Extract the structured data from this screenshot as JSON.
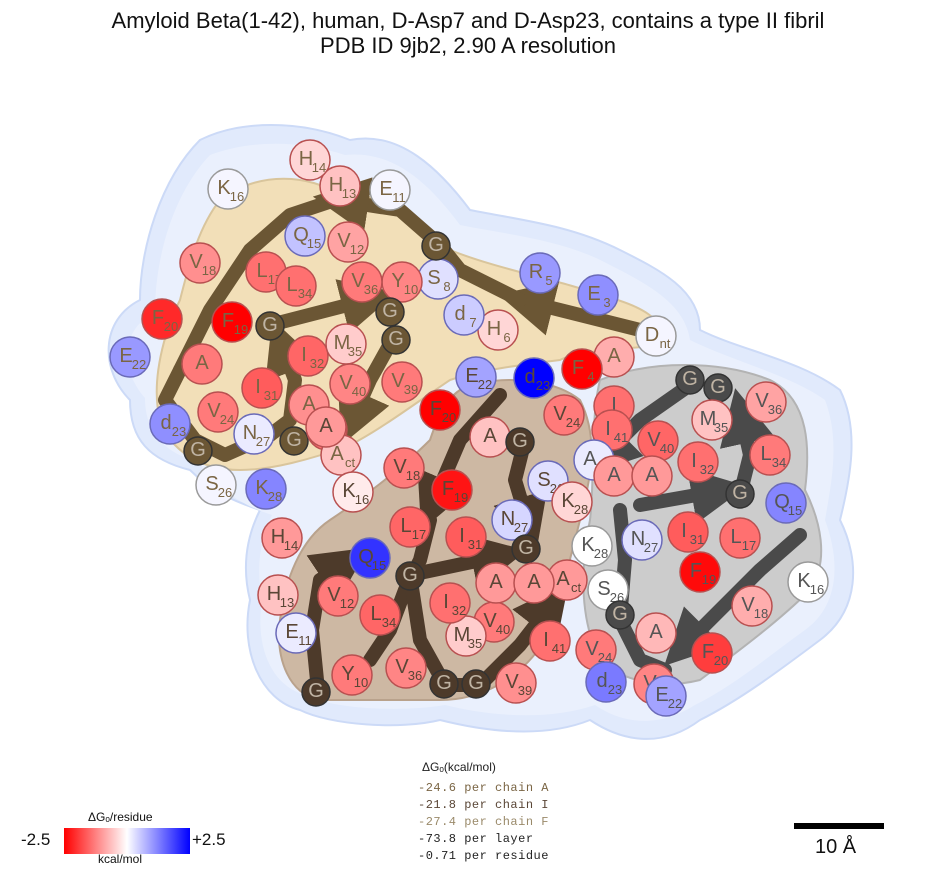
{
  "title": {
    "line1": "Amyloid Beta(1-42), human, D-Asp7 and D-Asp23, contains a type II fibril",
    "line2": "PDB ID 9jb2, 2.90 A resolution"
  },
  "colors": {
    "chainA_arrow": "#6b5634",
    "chainI_arrow": "#4d3a2a",
    "chainF_arrow": "#4a4a4a",
    "chainA_fill": "#f2dfb8",
    "chainI_fill": "#c9b29c",
    "chainF_fill": "#c8c8c8",
    "halo": "#dbe6fb",
    "scale_min": "#ff0000",
    "scale_mid": "#ffffff",
    "scale_max": "#0000ff"
  },
  "chains": [
    {
      "id": "A",
      "residues": [
        {
          "aa": "D",
          "num": "nt",
          "dg": 0.1
        },
        {
          "aa": "A",
          "num": "",
          "dg": -0.8
        },
        {
          "aa": "E",
          "num": "3",
          "dg": 1.1
        },
        {
          "aa": "F",
          "num": "4",
          "dg": -2.5
        },
        {
          "aa": "R",
          "num": "5",
          "dg": 1.0
        },
        {
          "aa": "H",
          "num": "6",
          "dg": -0.4
        },
        {
          "aa": "d",
          "num": "7",
          "dg": 0.5
        },
        {
          "aa": "S",
          "num": "8",
          "dg": 0.3
        },
        {
          "aa": "G",
          "num": "",
          "dg": 0.0
        },
        {
          "aa": "Y",
          "num": "10",
          "dg": -1.2
        },
        {
          "aa": "E",
          "num": "11",
          "dg": 0.1
        },
        {
          "aa": "V",
          "num": "12",
          "dg": -0.9
        },
        {
          "aa": "H",
          "num": "13",
          "dg": -0.6
        },
        {
          "aa": "H",
          "num": "14",
          "dg": -0.4
        },
        {
          "aa": "Q",
          "num": "15",
          "dg": 0.6
        },
        {
          "aa": "K",
          "num": "16",
          "dg": 0.1
        },
        {
          "aa": "L",
          "num": "17",
          "dg": -1.4
        },
        {
          "aa": "V",
          "num": "18",
          "dg": -1.1
        },
        {
          "aa": "F",
          "num": "19",
          "dg": -2.5
        },
        {
          "aa": "F",
          "num": "20",
          "dg": -2.1
        },
        {
          "aa": "A",
          "num": "",
          "dg": -1.3
        },
        {
          "aa": "E",
          "num": "22",
          "dg": 1.0
        },
        {
          "aa": "d",
          "num": "23",
          "dg": 1.1
        },
        {
          "aa": "V",
          "num": "24",
          "dg": -1.3
        },
        {
          "aa": "G",
          "num": "",
          "dg": 0.0
        },
        {
          "aa": "S",
          "num": "26",
          "dg": 0.1
        },
        {
          "aa": "N",
          "num": "27",
          "dg": 0.2
        },
        {
          "aa": "K",
          "num": "28",
          "dg": 1.2
        },
        {
          "aa": "G",
          "num": "",
          "dg": 0.0
        },
        {
          "aa": "A",
          "num": "",
          "dg": -1.1
        },
        {
          "aa": "I",
          "num": "31",
          "dg": -1.6
        },
        {
          "aa": "I",
          "num": "32",
          "dg": -1.5
        },
        {
          "aa": "G",
          "num": "",
          "dg": 0.0
        },
        {
          "aa": "L",
          "num": "34",
          "dg": -1.4
        },
        {
          "aa": "M",
          "num": "35",
          "dg": -0.5
        },
        {
          "aa": "V",
          "num": "36",
          "dg": -1.3
        },
        {
          "aa": "G",
          "num": "",
          "dg": 0.0
        },
        {
          "aa": "G",
          "num": "",
          "dg": 0.0
        },
        {
          "aa": "V",
          "num": "39",
          "dg": -1.3
        },
        {
          "aa": "V",
          "num": "40",
          "dg": -1.2
        },
        {
          "aa": "I",
          "num": "41",
          "dg": -1.4
        },
        {
          "aa": "A",
          "num": "ct",
          "dg": -0.6
        }
      ]
    },
    {
      "id": "I",
      "residues": [
        {
          "aa": "d",
          "num": "23",
          "dg": 2.5
        },
        {
          "aa": "E",
          "num": "22",
          "dg": 0.9
        },
        {
          "aa": "F",
          "num": "20",
          "dg": -2.5
        },
        {
          "aa": "V",
          "num": "24",
          "dg": -1.3
        },
        {
          "aa": "A",
          "num": "",
          "dg": -0.6
        },
        {
          "aa": "G",
          "num": "",
          "dg": 0.0
        },
        {
          "aa": "S",
          "num": "26",
          "dg": 0.3
        },
        {
          "aa": "N",
          "num": "27",
          "dg": 0.4
        },
        {
          "aa": "K",
          "num": "28",
          "dg": -0.4
        },
        {
          "aa": "G",
          "num": "",
          "dg": 0.0
        },
        {
          "aa": "A",
          "num": "ct",
          "dg": -1.0
        },
        {
          "aa": "I",
          "num": "41",
          "dg": -1.4
        },
        {
          "aa": "V",
          "num": "40",
          "dg": -1.3
        },
        {
          "aa": "V",
          "num": "39",
          "dg": -1.1
        },
        {
          "aa": "G",
          "num": "",
          "dg": 0.0
        },
        {
          "aa": "G",
          "num": "",
          "dg": 0.0
        },
        {
          "aa": "V",
          "num": "36",
          "dg": -1.2
        },
        {
          "aa": "M",
          "num": "35",
          "dg": -0.5
        },
        {
          "aa": "L",
          "num": "34",
          "dg": -1.5
        },
        {
          "aa": "I",
          "num": "32",
          "dg": -1.4
        },
        {
          "aa": "A",
          "num": "",
          "dg": -1.0
        },
        {
          "aa": "A",
          "num": "",
          "dg": -1.0
        },
        {
          "aa": "I",
          "num": "31",
          "dg": -1.6
        },
        {
          "aa": "G",
          "num": "",
          "dg": 0.0
        },
        {
          "aa": "F",
          "num": "19",
          "dg": -2.3
        },
        {
          "aa": "L",
          "num": "17",
          "dg": -1.5
        },
        {
          "aa": "V",
          "num": "18",
          "dg": -1.3
        },
        {
          "aa": "K",
          "num": "16",
          "dg": -0.2
        },
        {
          "aa": "Q",
          "num": "15",
          "dg": 2.0
        },
        {
          "aa": "H",
          "num": "14",
          "dg": -1.0
        },
        {
          "aa": "H",
          "num": "13",
          "dg": -0.6
        },
        {
          "aa": "V",
          "num": "12",
          "dg": -1.3
        },
        {
          "aa": "E",
          "num": "11",
          "dg": 0.2
        },
        {
          "aa": "Y",
          "num": "10",
          "dg": -1.3
        },
        {
          "aa": "G",
          "num": "",
          "dg": 0.0
        },
        {
          "aa": "A",
          "num": "",
          "dg": -1.0
        }
      ]
    },
    {
      "id": "F",
      "residues": [
        {
          "aa": "V",
          "num": "39",
          "dg": -1.2
        },
        {
          "aa": "G",
          "num": "",
          "dg": 0.0
        },
        {
          "aa": "G",
          "num": "",
          "dg": 0.0
        },
        {
          "aa": "V",
          "num": "36",
          "dg": -0.9
        },
        {
          "aa": "I",
          "num": "",
          "dg": -1.4
        },
        {
          "aa": "V",
          "num": "40",
          "dg": -1.5
        },
        {
          "aa": "M",
          "num": "35",
          "dg": -0.6
        },
        {
          "aa": "I",
          "num": "41",
          "dg": -1.4
        },
        {
          "aa": "I",
          "num": "32",
          "dg": -1.4
        },
        {
          "aa": "L",
          "num": "34",
          "dg": -1.3
        },
        {
          "aa": "A",
          "num": "ct",
          "dg": 0.2
        },
        {
          "aa": "A",
          "num": "",
          "dg": -1.0
        },
        {
          "aa": "A",
          "num": "",
          "dg": -1.0
        },
        {
          "aa": "G",
          "num": "",
          "dg": 0.0
        },
        {
          "aa": "Q",
          "num": "15",
          "dg": 1.2
        },
        {
          "aa": "K",
          "num": "28",
          "dg": 0.0
        },
        {
          "aa": "N",
          "num": "27",
          "dg": 0.3
        },
        {
          "aa": "I",
          "num": "31",
          "dg": -1.6
        },
        {
          "aa": "L",
          "num": "17",
          "dg": -1.4
        },
        {
          "aa": "S",
          "num": "26",
          "dg": 0.0
        },
        {
          "aa": "F",
          "num": "19",
          "dg": -2.4
        },
        {
          "aa": "K",
          "num": "16",
          "dg": 0.0
        },
        {
          "aa": "V",
          "num": "18",
          "dg": -0.8
        },
        {
          "aa": "G",
          "num": "",
          "dg": 0.0
        },
        {
          "aa": "A",
          "num": "",
          "dg": -0.7
        },
        {
          "aa": "V",
          "num": "24",
          "dg": -1.3
        },
        {
          "aa": "F",
          "num": "20",
          "dg": -1.9
        },
        {
          "aa": "d",
          "num": "23",
          "dg": 1.3
        },
        {
          "aa": "E",
          "num": "22",
          "dg": 0.9
        }
      ]
    }
  ],
  "energy_table": {
    "header": "ΔGₒ(kcal/mol)",
    "lines": [
      {
        "text": "-24.6 per chain A",
        "color": "#7a6544"
      },
      {
        "text": "-21.8 per chain I",
        "color": "#5a4636"
      },
      {
        "text": "-27.4 per chain F",
        "color": "#9a8a6a"
      },
      {
        "text": "-73.8 per layer",
        "color": "#222222"
      },
      {
        "text": "-0.71 per residue",
        "color": "#222222"
      }
    ]
  },
  "legend": {
    "title": "ΔGₒ/residue",
    "min_label": "-2.5",
    "max_label": "+2.5",
    "unit": "kcal/mol"
  },
  "scale_bar": {
    "label": "10 Å"
  }
}
